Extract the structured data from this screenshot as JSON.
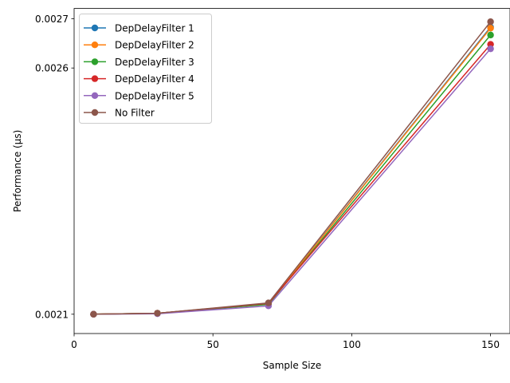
{
  "chart_data": {
    "type": "line",
    "title": "",
    "xlabel": "Sample Size",
    "ylabel": "Performance (μs)",
    "xlim": [
      0,
      157
    ],
    "ylim": [
      0.0020608,
      0.0027209
    ],
    "xticks": [
      0,
      50,
      100,
      150
    ],
    "xtick_labels": [
      "0",
      "50",
      "100",
      "150"
    ],
    "yticks": [
      0.0021,
      0.0026,
      0.0027
    ],
    "ytick_labels": [
      "0.0021",
      "0.0026",
      "0.0027"
    ],
    "grid": false,
    "legend": "top-left",
    "x": [
      7,
      30,
      70,
      150
    ],
    "series": [
      {
        "name": "DepDelayFilter 1",
        "color": "#1f77b4",
        "values": [
          0.0021,
          0.002102,
          0.002121,
          0.002683
        ]
      },
      {
        "name": "DepDelayFilter 2",
        "color": "#ff7f0e",
        "values": [
          0.0021,
          0.002102,
          0.002121,
          0.002681
        ]
      },
      {
        "name": "DepDelayFilter 3",
        "color": "#2ca02c",
        "values": [
          0.0021,
          0.002102,
          0.00212,
          0.002667
        ]
      },
      {
        "name": "DepDelayFilter 4",
        "color": "#d62728",
        "values": [
          0.0021,
          0.002102,
          0.002122,
          0.002648
        ]
      },
      {
        "name": "DepDelayFilter 5",
        "color": "#9467bd",
        "values": [
          0.0021,
          0.002101,
          0.002117,
          0.002639
        ]
      },
      {
        "name": "No Filter",
        "color": "#8c564b",
        "values": [
          0.0021,
          0.002102,
          0.002123,
          0.002694
        ]
      }
    ]
  }
}
